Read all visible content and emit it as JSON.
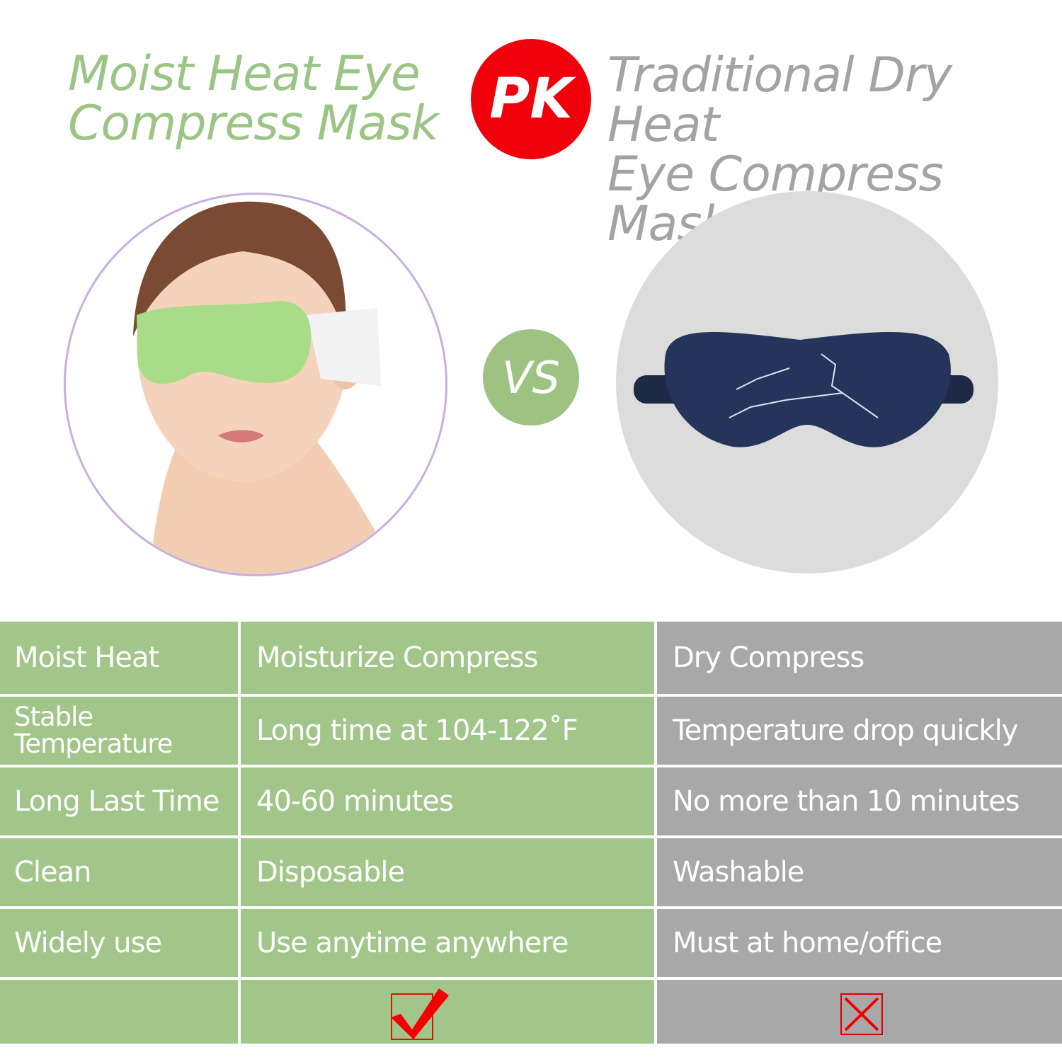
{
  "header": {
    "left_title_line1": "Moist Heat Eye",
    "left_title_line2": "Compress Mask",
    "pk_label": "PK",
    "right_title_line1": "Traditional Dry Heat",
    "right_title_line2": "Eye Compress Mask"
  },
  "vs_label": "VS",
  "colors": {
    "green": "#a2c58a",
    "gray": "#a8a8a8",
    "red": "#f0000a",
    "title_green": "#9cc585"
  },
  "table": {
    "rows": [
      {
        "feature": "Moist Heat",
        "moist": "Moisturize Compress",
        "dry": "Dry Compress"
      },
      {
        "feature": "Stable Temperature",
        "moist": "Long time at 104-122˚F",
        "dry": "Temperature drop quickly"
      },
      {
        "feature": "Long Last Time",
        "moist": "40-60 minutes",
        "dry": "No more than 10 minutes"
      },
      {
        "feature": "Clean",
        "moist": "Disposable",
        "dry": "Washable"
      },
      {
        "feature": "Widely use",
        "moist": "Use anytime anywhere",
        "dry": "Must at home/office"
      }
    ],
    "result": {
      "moist_icon": "check-icon",
      "dry_icon": "x-icon"
    }
  }
}
